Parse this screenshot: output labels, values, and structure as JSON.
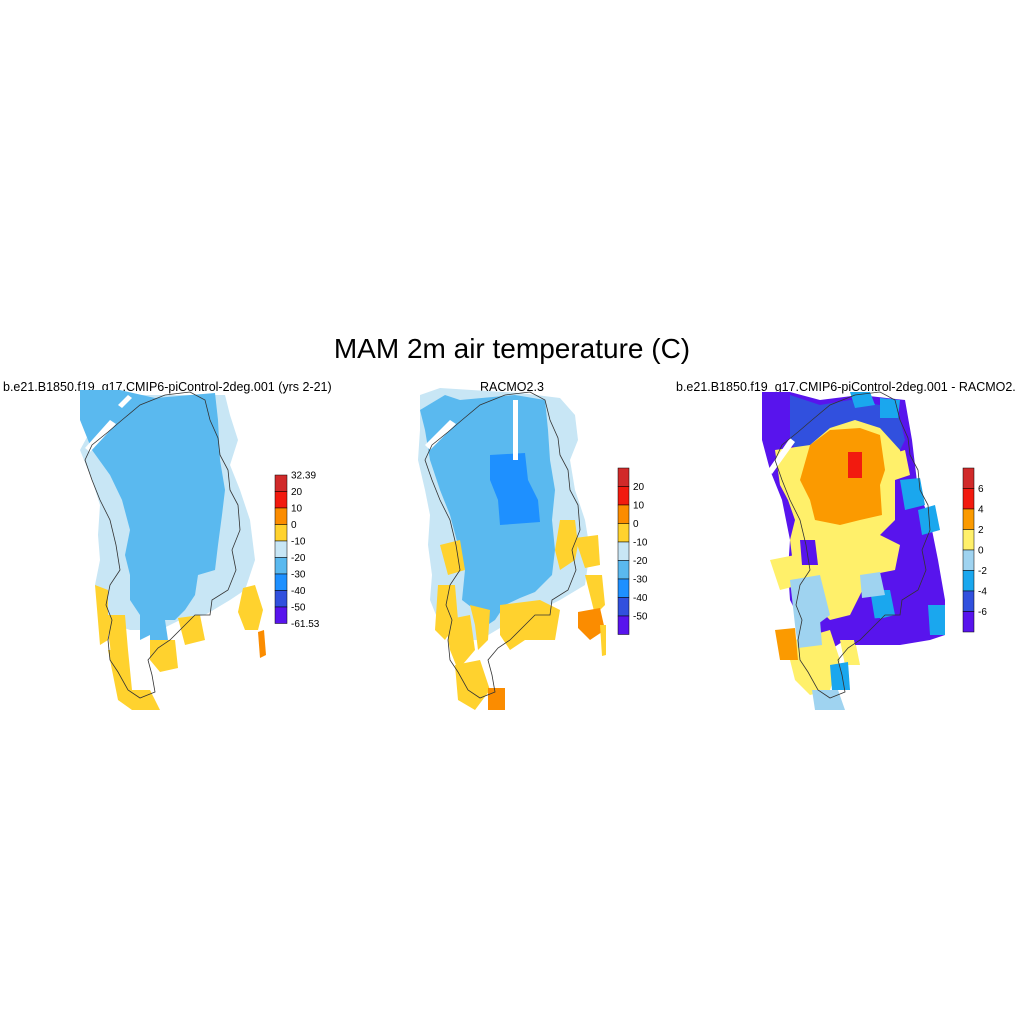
{
  "title": "MAM 2m air temperature (C)",
  "panels": [
    {
      "id": "model",
      "subtitle": "b.e21.B1850.f19_g17.CMIP6-piControl-2deg.001 (yrs 2-21)",
      "legend": {
        "labels": [
          "32.39",
          "20",
          "10",
          "0",
          "-10",
          "-20",
          "-30",
          "-40",
          "-50",
          "-61.53"
        ],
        "colors": [
          "#d12a2a",
          "#f21a0f",
          "#fb8c00",
          "#ffd22e",
          "#c8e6f5",
          "#5ab9ef",
          "#1e90ff",
          "#3150de",
          "#5814ed"
        ]
      }
    },
    {
      "id": "obs",
      "subtitle": "RACMO2.3",
      "legend": {
        "labels": [
          "20",
          "10",
          "0",
          "-10",
          "-20",
          "-30",
          "-40",
          "-50"
        ],
        "colors": [
          "#d12a2a",
          "#f21a0f",
          "#fb8c00",
          "#ffd22e",
          "#c8e6f5",
          "#5ab9ef",
          "#1e90ff",
          "#3150de",
          "#5814ed"
        ]
      }
    },
    {
      "id": "diff",
      "subtitle": "b.e21.B1850.f19_g17.CMIP6-piControl-2deg.001 - RACMO2.",
      "legend": {
        "labels": [
          "6",
          "4",
          "2",
          "0",
          "-2",
          "-4",
          "-6"
        ],
        "colors": [
          "#d12a2a",
          "#f21a0f",
          "#fb9a00",
          "#fff06a",
          "#9fd3f0",
          "#1aa7ee",
          "#3150de",
          "#5814ed"
        ]
      }
    }
  ]
}
